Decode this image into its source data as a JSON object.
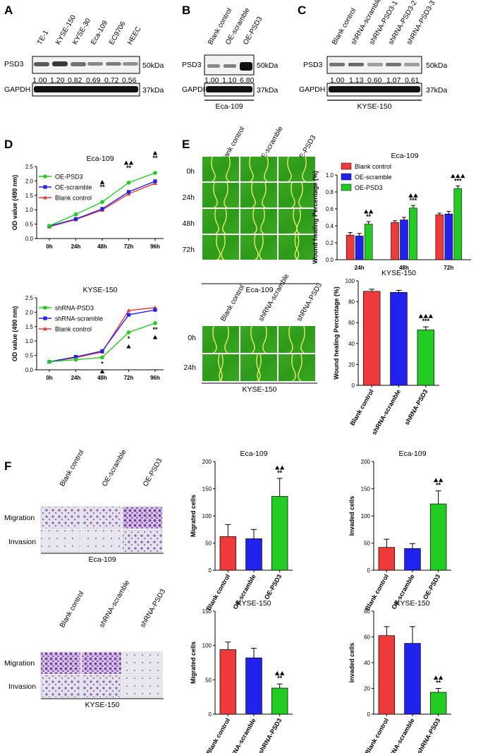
{
  "panels": {
    "A": "A",
    "B": "B",
    "C": "C",
    "D": "D",
    "E": "E",
    "F": "F"
  },
  "blots": {
    "A": {
      "lanes": [
        "TE-1",
        "KYSE-150",
        "KYSE-30",
        "Eca-109",
        "EC9706",
        "HEEC"
      ],
      "values": [
        "1.00",
        "1.20",
        "0.82",
        "0.69",
        "0.72",
        "0.56"
      ],
      "protein": "PSD3",
      "control": "GAPDH",
      "kda_top": "50kDa",
      "kda_bottom": "37kDa"
    },
    "B": {
      "lanes": [
        "Blank control",
        "OE-scramble",
        "OE-PSD3"
      ],
      "values": [
        "1.00",
        "1.10",
        "6.80"
      ],
      "protein": "PSD3",
      "control": "GAPDH",
      "kda_top": "50kDa",
      "kda_bottom": "37kDa",
      "cell_line": "Eca-109"
    },
    "C": {
      "lanes": [
        "Blank control",
        "shRNA-scramble",
        "shRNA-PSD3-1",
        "shRNA-PSD3-2",
        "shRNA-PSD3-3"
      ],
      "values": [
        "1.00",
        "1.13",
        "0.60",
        "1.07",
        "0.61"
      ],
      "protein": "PSD3",
      "control": "GAPDH",
      "kda_top": "50kDa",
      "kda_bottom": "37kDa",
      "cell_line": "KYSE-150"
    }
  },
  "wound_images": {
    "eca": {
      "cols": [
        "Blank control",
        "OE-scramble",
        "OE-PSD3"
      ],
      "rows": [
        "0h",
        "24h",
        "48h",
        "72h"
      ],
      "cell_line": "Eca-109"
    },
    "kyse": {
      "cols": [
        "Blank control",
        "shRNA-scramble",
        "shRNA-PSD3"
      ],
      "rows": [
        "0h",
        "24h"
      ],
      "cell_line": "KYSE-150"
    }
  },
  "transwell_images": {
    "eca": {
      "cols": [
        "Blank control",
        "OE-scramble",
        "OE-PSD3"
      ],
      "rows": [
        "Migration",
        "Invasion"
      ],
      "cell_line": "Eca-109"
    },
    "kyse": {
      "cols": [
        "Blank control",
        "shRNA-scramble",
        "shRNA-PSD3"
      ],
      "rows": [
        "Migration",
        "Invasion"
      ],
      "cell_line": "KYSE-150"
    }
  },
  "colors": {
    "red": "#ee3a3a",
    "blue": "#2222ee",
    "green": "#22cc22"
  },
  "chart_data": [
    {
      "id": "D1",
      "type": "line",
      "title": "Eca-109",
      "xlabel": "",
      "ylabel": "OD value (490 nm)",
      "categories": [
        "0h",
        "24h",
        "48h",
        "72h",
        "96h"
      ],
      "ylim": [
        0,
        2.5
      ],
      "yticks": [
        "0.0",
        "0.5",
        "1.0",
        "1.5",
        "2.0",
        "2.5"
      ],
      "series": [
        {
          "name": "OE-PSD3",
          "color": "#22cc22",
          "marker": "circle",
          "values": [
            0.44,
            0.84,
            1.27,
            1.94,
            2.28
          ]
        },
        {
          "name": "OE-scramble",
          "color": "#2222ee",
          "marker": "square",
          "values": [
            0.43,
            0.68,
            1.03,
            1.62,
            1.99
          ]
        },
        {
          "name": "Blank control",
          "color": "#ee3a3a",
          "marker": "triangle",
          "values": [
            0.41,
            0.66,
            0.99,
            1.55,
            1.92
          ]
        }
      ],
      "annotations": [
        {
          "category": "48h",
          "text": "**",
          "triangles": 1
        },
        {
          "category": "72h",
          "text": "**",
          "triangles": 2
        },
        {
          "category": "96h",
          "text": "**",
          "triangles": 1
        }
      ]
    },
    {
      "id": "D2",
      "type": "line",
      "title": "KYSE-150",
      "xlabel": "",
      "ylabel": "OD value (490 nm)",
      "categories": [
        "0h",
        "24h",
        "48h",
        "72h",
        "96h"
      ],
      "ylim": [
        0,
        2.5
      ],
      "yticks": [
        "0.0",
        "0.5",
        "1.0",
        "1.5",
        "2.0",
        "2.5"
      ],
      "series": [
        {
          "name": "shRNA-PSD3",
          "color": "#22cc22",
          "marker": "circle",
          "values": [
            0.28,
            0.35,
            0.43,
            1.3,
            1.62
          ]
        },
        {
          "name": "shRNA-scramble",
          "color": "#2222ee",
          "marker": "square",
          "values": [
            0.28,
            0.45,
            0.65,
            1.91,
            2.08
          ]
        },
        {
          "name": "Blank control",
          "color": "#ee3a3a",
          "marker": "triangle",
          "values": [
            0.28,
            0.42,
            0.62,
            2.06,
            2.16
          ]
        }
      ],
      "annotations": [
        {
          "category": "48h",
          "text": "*",
          "triangles": 1
        },
        {
          "category": "72h",
          "text": "*",
          "triangles": 1
        },
        {
          "category": "96h",
          "text": "**",
          "triangles": 1
        }
      ]
    },
    {
      "id": "E1",
      "type": "bar",
      "title": "Eca-109",
      "ylabel": "Wound healing Percentage (%)",
      "categories": [
        "24h",
        "48h",
        "72h"
      ],
      "ylim": [
        0,
        1.0
      ],
      "yticks": [
        "0.0",
        "0.2",
        "0.4",
        "0.6",
        "0.8",
        "1.0"
      ],
      "series": [
        {
          "name": "Blank control",
          "color": "#ee3a3a",
          "values": [
            0.29,
            0.44,
            0.53
          ],
          "errors": [
            0.03,
            0.02,
            0.02
          ]
        },
        {
          "name": "OE-scramble",
          "color": "#2222ee",
          "values": [
            0.28,
            0.47,
            0.54
          ],
          "errors": [
            0.03,
            0.03,
            0.03
          ]
        },
        {
          "name": "OE-PSD3",
          "color": "#22cc22",
          "values": [
            0.42,
            0.61,
            0.84
          ],
          "errors": [
            0.03,
            0.03,
            0.03
          ]
        }
      ],
      "annotations": [
        {
          "category": "24h",
          "text": "**",
          "triangles": 2
        },
        {
          "category": "48h",
          "text": "***",
          "triangles": 2
        },
        {
          "category": "72h",
          "text": "***",
          "triangles": 3
        }
      ]
    },
    {
      "id": "E2",
      "type": "bar",
      "title": "KYSE-150",
      "ylabel": "Wound healing Percentage (%)",
      "categories": [
        "Blank control",
        "shRNA-scramble",
        "shRNA-PSD3"
      ],
      "ylim": [
        0,
        100
      ],
      "yticks": [
        "0",
        "20",
        "40",
        "60",
        "80",
        "100"
      ],
      "values": [
        90,
        89,
        53
      ],
      "errors": [
        2,
        2,
        3
      ],
      "colors": [
        "#ee3a3a",
        "#2222ee",
        "#22cc22"
      ],
      "annotations": [
        {
          "index": 2,
          "text": "***",
          "triangles": 3
        }
      ]
    },
    {
      "id": "F1",
      "type": "bar",
      "title": "Eca-109",
      "ylabel": "Migrated cells",
      "categories": [
        "Blank control",
        "OE-scramble",
        "OE-PSD3"
      ],
      "ylim": [
        0,
        200
      ],
      "yticks": [
        "0",
        "50",
        "100",
        "150",
        "200"
      ],
      "values": [
        62,
        58,
        136
      ],
      "errors": [
        22,
        17,
        33
      ],
      "colors": [
        "#ee3a3a",
        "#2222ee",
        "#22cc22"
      ],
      "annotations": [
        {
          "index": 2,
          "text": "**",
          "triangles": 2
        }
      ]
    },
    {
      "id": "F2",
      "type": "bar",
      "title": "Eca-109",
      "ylabel": "Invaded cells",
      "categories": [
        "Blank control",
        "OE-scramble",
        "OE-PSD3"
      ],
      "ylim": [
        0,
        200
      ],
      "yticks": [
        "0",
        "50",
        "100",
        "150",
        "200"
      ],
      "values": [
        42,
        40,
        122
      ],
      "errors": [
        15,
        9,
        24
      ],
      "colors": [
        "#ee3a3a",
        "#2222ee",
        "#22cc22"
      ],
      "annotations": [
        {
          "index": 2,
          "text": "**",
          "triangles": 2
        }
      ]
    },
    {
      "id": "F3",
      "type": "bar",
      "title": "KYSE-150",
      "ylabel": "Migrated cells",
      "categories": [
        "Blank control",
        "shRNA-scramble",
        "shRNA-PSD3"
      ],
      "ylim": [
        0,
        150
      ],
      "yticks": [
        "0",
        "50",
        "100",
        "150"
      ],
      "values": [
        94,
        82,
        38
      ],
      "errors": [
        11,
        14,
        6
      ],
      "colors": [
        "#ee3a3a",
        "#2222ee",
        "#22cc22"
      ],
      "annotations": [
        {
          "index": 2,
          "text": "**",
          "triangles": 2
        }
      ]
    },
    {
      "id": "F4",
      "type": "bar",
      "title": "KYSE-150",
      "ylabel": "Invaded cells",
      "categories": [
        "Blank control",
        "shRNA-scramble",
        "shRNA-PSD3"
      ],
      "ylim": [
        0,
        80
      ],
      "yticks": [
        "0",
        "20",
        "40",
        "60",
        "80"
      ],
      "values": [
        61,
        55,
        17
      ],
      "errors": [
        7,
        13,
        3
      ],
      "colors": [
        "#ee3a3a",
        "#2222ee",
        "#22cc22"
      ],
      "annotations": [
        {
          "index": 2,
          "text": "**",
          "triangles": 2
        }
      ]
    }
  ]
}
